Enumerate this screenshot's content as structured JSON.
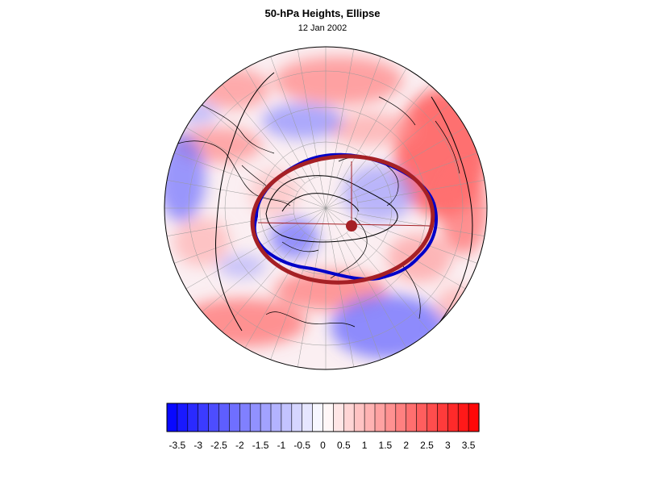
{
  "chart_data": {
    "type": "heatmap",
    "title": "50-hPa Heights, Ellipse",
    "subtitle": "12 Jan 2002",
    "projection": "polar stereographic, north pole centered",
    "colorbar": {
      "min": -3.75,
      "max": 3.75,
      "step": 0.25,
      "colors_low_to_high": "blue to white to red",
      "tick_labels": [
        "-3.5",
        "-3",
        "-2.5",
        "-2",
        "-1.5",
        "-1",
        "-0.5",
        "0",
        "0.5",
        "1",
        "1.5",
        "2",
        "2.5",
        "3",
        "3.5"
      ]
    },
    "overlays": [
      {
        "kind": "vortex-edge-contour",
        "color": "#0000c8"
      },
      {
        "kind": "fitted-ellipse",
        "color": "#a52025"
      },
      {
        "kind": "ellipse-centroid",
        "color": "#a52025"
      }
    ],
    "colors": {
      "blue_max": "#0000ff",
      "red_max": "#ff0000",
      "ellipse": "#a52025",
      "contour": "#0000c8"
    }
  }
}
